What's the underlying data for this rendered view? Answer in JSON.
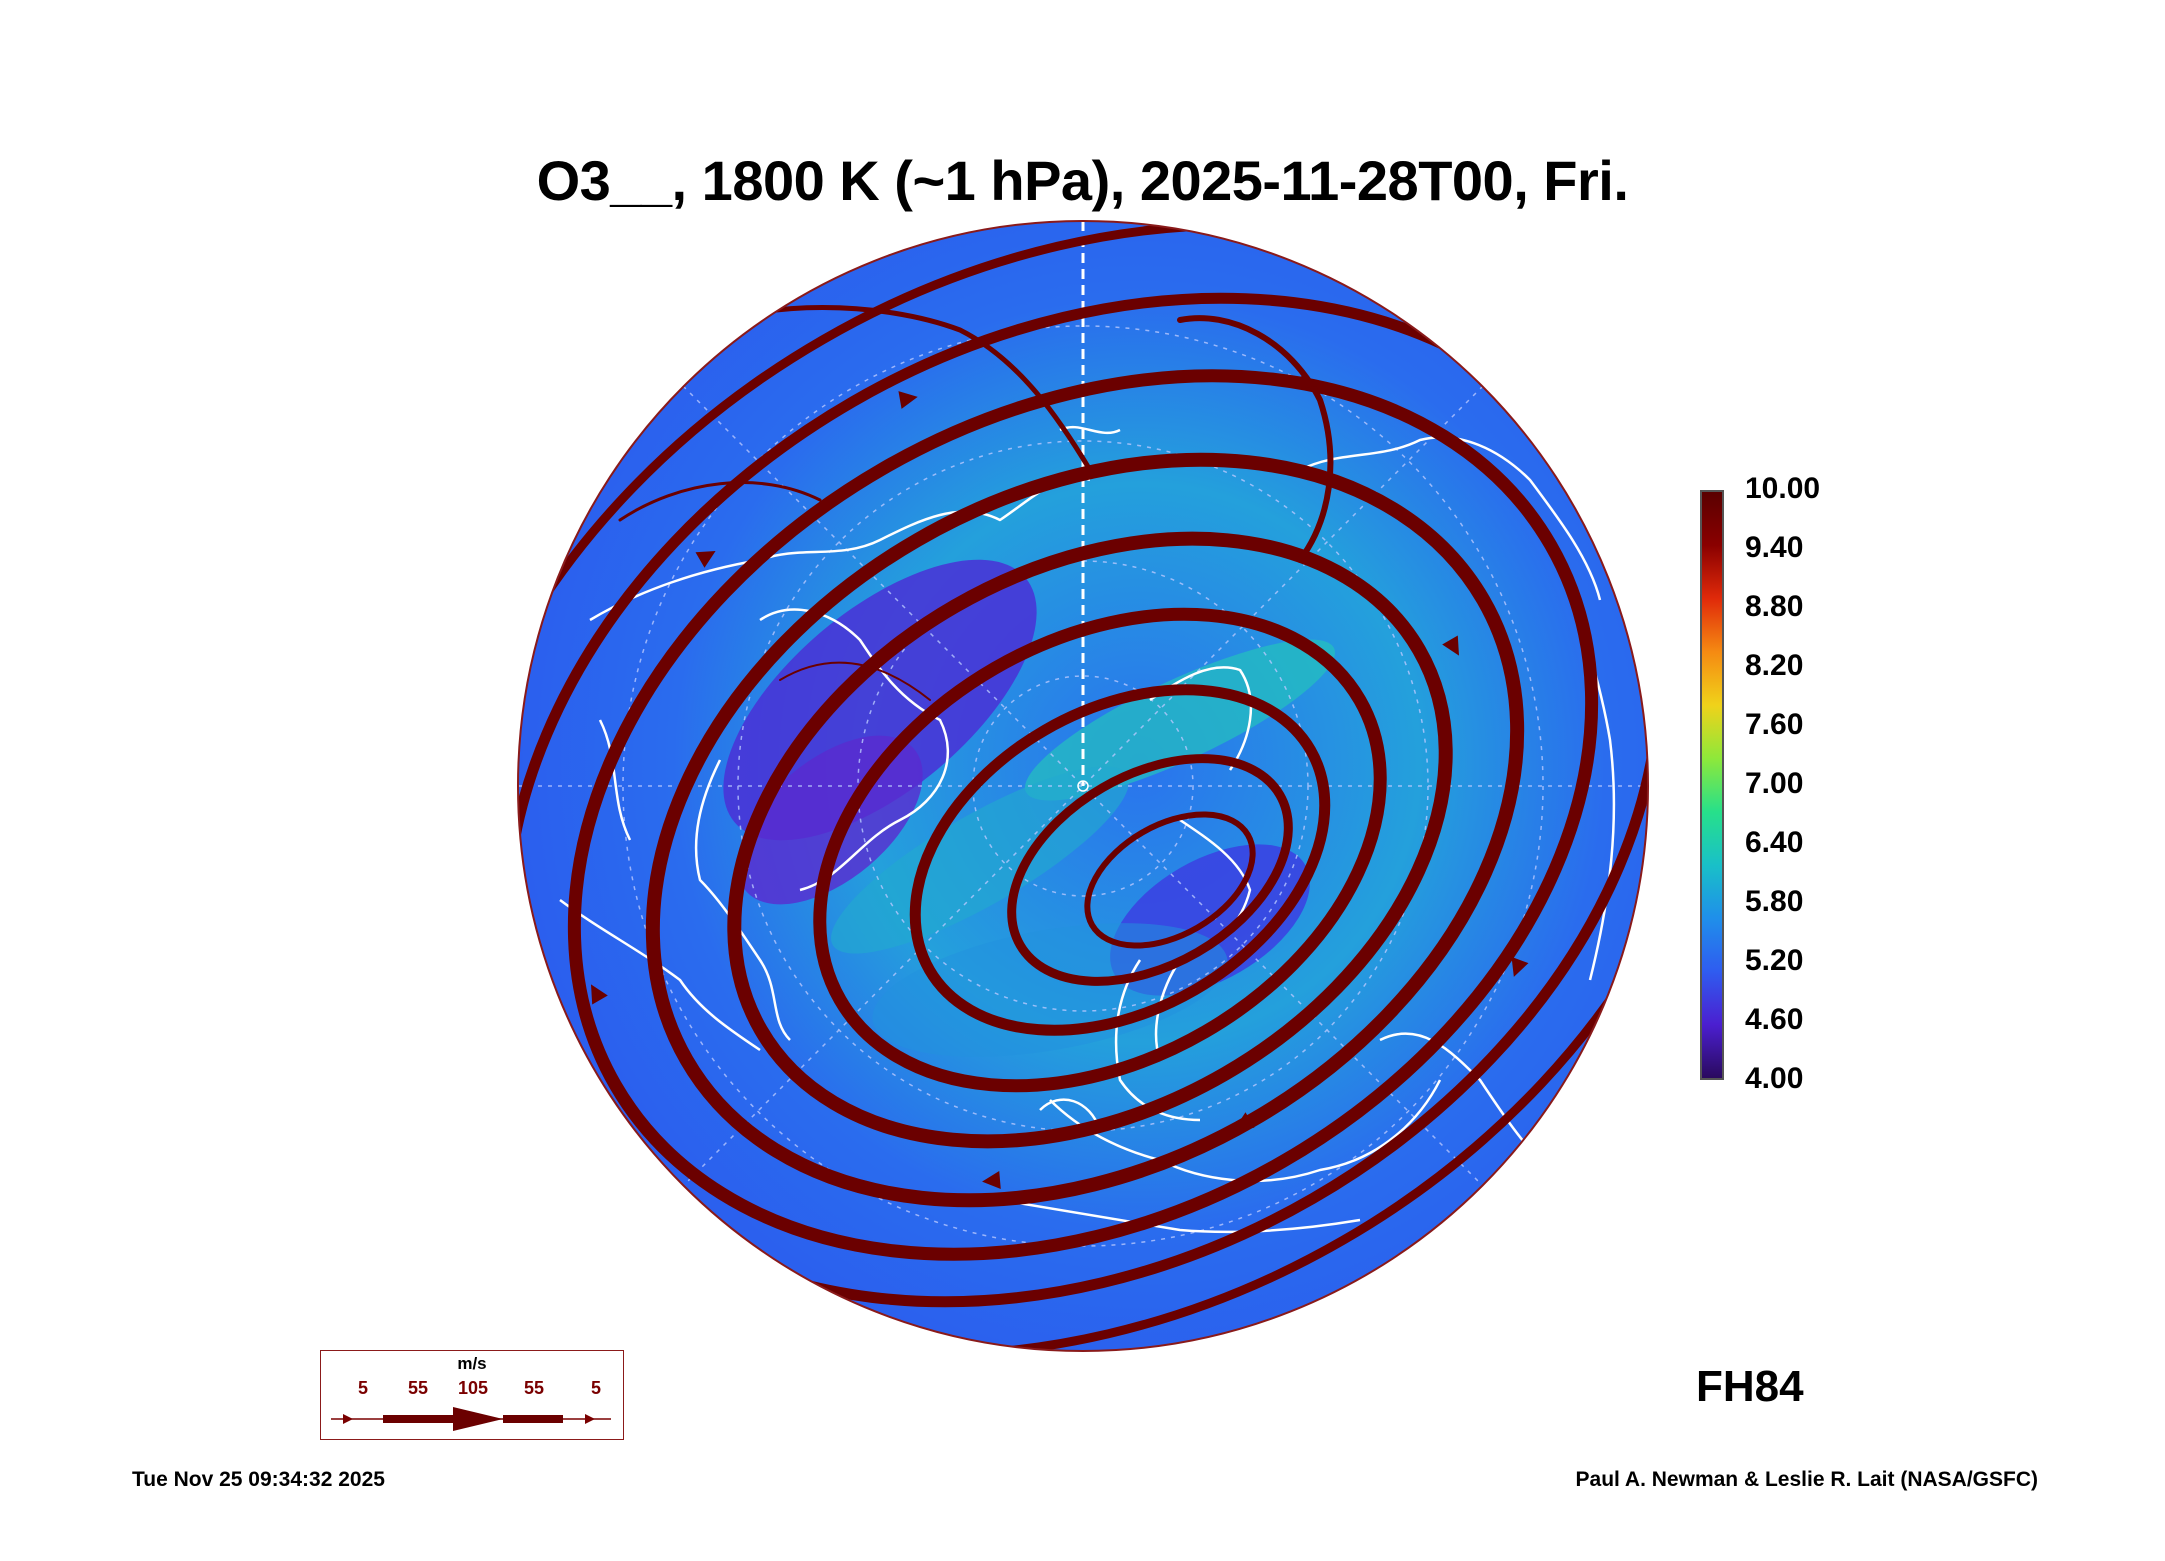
{
  "title": "O3__, 1800 K (~1 hPa), 2025-11-28T00, Fri.",
  "forecast_hour": "FH84",
  "timestamp": "Tue Nov 25 09:34:32 2025",
  "credit": "Paul A. Newman & Leslie R. Lait (NASA/GSFC)",
  "colorbar": {
    "labels": [
      "10.00",
      "9.40",
      "8.80",
      "8.20",
      "7.60",
      "7.00",
      "6.40",
      "5.80",
      "5.20",
      "4.60",
      "4.00"
    ],
    "colors": [
      "#2a0a5e",
      "#4b1fd0",
      "#2f5cf0",
      "#1f8fea",
      "#19c0c8",
      "#27e08a",
      "#8ee83a",
      "#f0d21a",
      "#f58a12",
      "#e02a0a",
      "#8a0000",
      "#5a0000"
    ]
  },
  "wind_legend": {
    "unit": "m/s",
    "speeds": [
      "5",
      "55",
      "105",
      "55",
      "5"
    ]
  },
  "colors": {
    "ocean_field": "#2b63ee",
    "low_ozone": "#4a2fd8",
    "high_ozone": "#22b9c2",
    "streamline": "#6b0000",
    "coastline": "#ffffff"
  }
}
